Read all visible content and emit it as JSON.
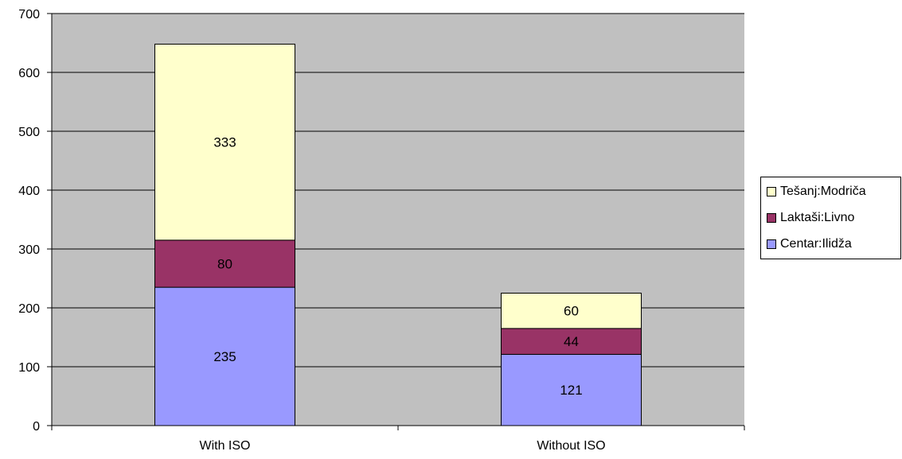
{
  "chart_data": {
    "type": "bar",
    "stacked": true,
    "categories": [
      "With ISO",
      "Without ISO"
    ],
    "series": [
      {
        "name": "Centar:Ilidža",
        "values": [
          235,
          121
        ],
        "color": "#9999FF"
      },
      {
        "name": "Laktaši:Livno",
        "values": [
          80,
          44
        ],
        "color": "#993366"
      },
      {
        "name": "Tešanj:Modriča",
        "values": [
          333,
          60
        ],
        "color": "#FFFFCC"
      }
    ],
    "y_ticks": [
      "0",
      "100",
      "200",
      "300",
      "400",
      "500",
      "600",
      "700"
    ],
    "ylim": [
      0,
      700
    ],
    "grid": true,
    "plot_background": "#C0C0C0",
    "legend_position": "right"
  }
}
